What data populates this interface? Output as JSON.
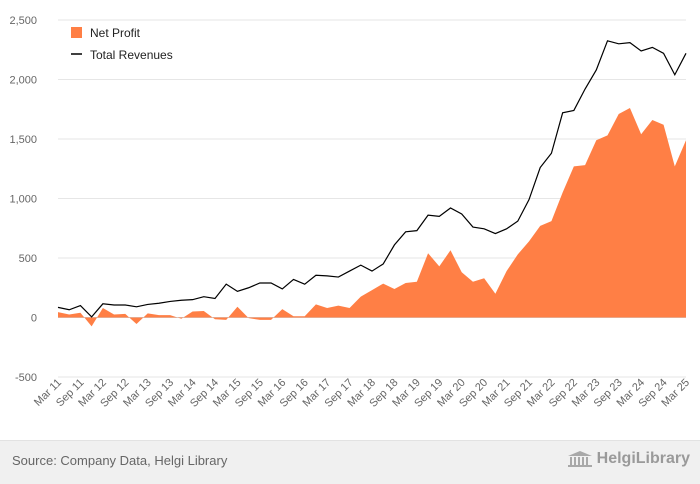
{
  "chart_data": {
    "type": "area+line",
    "title": "",
    "xlabel": "",
    "ylabel": "",
    "ylim": [
      -500,
      2500
    ],
    "yticks": [
      -500,
      0,
      500,
      1000,
      1500,
      2000,
      2500
    ],
    "ytick_labels": [
      "-500",
      "0",
      "500",
      "1,000",
      "1,500",
      "2,000",
      "2,500"
    ],
    "x_tick_labels": [
      "Mar 11",
      "Sep 11",
      "Mar 12",
      "Sep 12",
      "Mar 13",
      "Sep 13",
      "Mar 14",
      "Sep 14",
      "Mar 15",
      "Sep 15",
      "Mar 16",
      "Sep 16",
      "Mar 17",
      "Sep 17",
      "Mar 18",
      "Sep 18",
      "Mar 19",
      "Sep 19",
      "Mar 20",
      "Sep 20",
      "Mar 21",
      "Sep 21",
      "Mar 22",
      "Sep 22",
      "Mar 23",
      "Sep 23",
      "Mar 24",
      "Sep 24",
      "Mar 25"
    ],
    "legend_position": "top-left",
    "series": [
      {
        "name": "Net Profit",
        "kind": "area",
        "color": "#ff7f45",
        "values": [
          45,
          25,
          40,
          -75,
          80,
          25,
          30,
          -55,
          35,
          20,
          20,
          -10,
          50,
          55,
          -15,
          -20,
          90,
          -5,
          -20,
          -20,
          70,
          10,
          10,
          110,
          80,
          100,
          80,
          175,
          230,
          285,
          240,
          290,
          300,
          540,
          430,
          565,
          380,
          300,
          330,
          200,
          390,
          530,
          640,
          770,
          810,
          1050,
          1270,
          1280,
          1490,
          1530,
          1710,
          1760,
          1540,
          1660,
          1620,
          1270,
          1490
        ]
      },
      {
        "name": "Total Revenues",
        "kind": "line",
        "color": "#000000",
        "values": [
          85,
          65,
          100,
          5,
          115,
          105,
          105,
          90,
          110,
          120,
          135,
          145,
          150,
          175,
          160,
          280,
          220,
          250,
          290,
          290,
          240,
          320,
          280,
          355,
          350,
          340,
          390,
          440,
          390,
          450,
          610,
          720,
          730,
          860,
          850,
          920,
          870,
          760,
          745,
          705,
          745,
          810,
          990,
          1260,
          1380,
          1720,
          1740,
          1920,
          2080,
          2325,
          2300,
          2310,
          2240,
          2270,
          2220,
          2040,
          2220
        ]
      }
    ]
  },
  "footer": {
    "source": "Source: Company Data, Helgi Library",
    "brand": "HelgiLibrary"
  }
}
